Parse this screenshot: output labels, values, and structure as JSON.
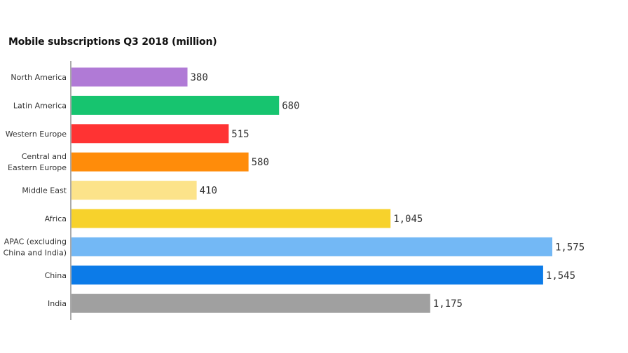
{
  "chart_data": {
    "type": "bar",
    "orientation": "horizontal",
    "title": "Mobile subscriptions Q3 2018 (million)",
    "xlabel": "",
    "ylabel": "",
    "grid": false,
    "xlim": [
      0,
      1575
    ],
    "categories": [
      [
        "North America"
      ],
      [
        "Latin America"
      ],
      [
        "Western Europe"
      ],
      [
        "Central and",
        "Eastern Europe"
      ],
      [
        "Middle East"
      ],
      [
        "Africa"
      ],
      [
        "APAC (excluding",
        "China and India)"
      ],
      [
        "China"
      ],
      [
        "India"
      ]
    ],
    "values": [
      380,
      680,
      515,
      580,
      410,
      1045,
      1575,
      1545,
      1175
    ],
    "value_labels": [
      "380",
      "680",
      "515",
      "580",
      "410",
      "1,045",
      "1,575",
      "1,545",
      "1,175"
    ],
    "colors": [
      "#b07ad6",
      "#17c46f",
      "#ff3333",
      "#ff8c0a",
      "#fce38a",
      "#f7d22c",
      "#73b8f5",
      "#0c7be8",
      "#a0a0a0"
    ]
  }
}
